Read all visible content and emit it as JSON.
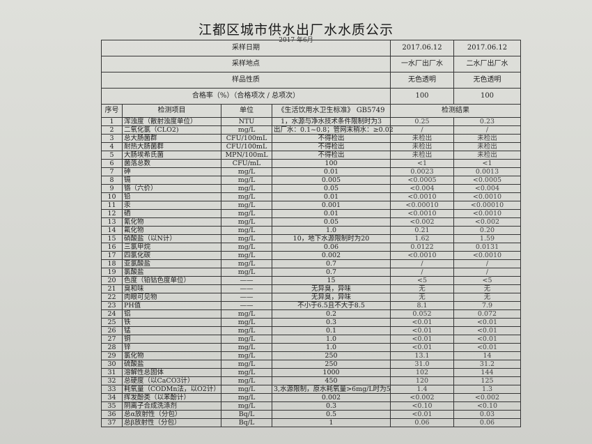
{
  "title": "江都区城市供水出厂水水质公示",
  "subtitle": "2017 年6月",
  "header": [
    {
      "label": "采样日期",
      "r1": "2017.06.12",
      "r2": "2017.06.12"
    },
    {
      "label": "采样地点",
      "r1": "一水厂出厂水",
      "r2": "二水厂出厂水"
    },
    {
      "label": "样品性质",
      "r1": "无色透明",
      "r2": "无色透明"
    },
    {
      "label": "合格率（%）（合格项次 / 总项次）",
      "r1": "100",
      "r2": "100"
    }
  ],
  "columns": {
    "no": "序号",
    "item": "检测项目",
    "unit": "单位",
    "standard": "《生活饮用水卫生标准》 GB5749",
    "result": "检测结果"
  },
  "rows": [
    {
      "no": "1",
      "item": "浑浊度（散射浊度单位）",
      "unit": "NTU",
      "std": "1，水源与净水技术条件限制时为3",
      "r1": "0.25",
      "r2": "0.23"
    },
    {
      "no": "2",
      "item": "二氧化氯（CLO2)",
      "unit": "mg/L",
      "std": "出厂水：0.1~0.8；管网末稍水：≥0.02",
      "r1": "/",
      "r2": "/"
    },
    {
      "no": "3",
      "item": "总大肠菌群",
      "unit": "CFU/100mL",
      "std": "不得检出",
      "r1": "未检出",
      "r2": "未检出"
    },
    {
      "no": "4",
      "item": "耐热大肠菌群",
      "unit": "CFU/100mL",
      "std": "不得检出",
      "r1": "未检出",
      "r2": "未检出"
    },
    {
      "no": "5",
      "item": "大肠埃希氏菌",
      "unit": "MPN/100mL",
      "std": "不得检出",
      "r1": "未检出",
      "r2": "未检出"
    },
    {
      "no": "6",
      "item": "菌落总数",
      "unit": "CFU/mL",
      "std": "100",
      "r1": "<1",
      "r2": "<1"
    },
    {
      "no": "7",
      "item": "砷",
      "unit": "mg/L",
      "std": "0.01",
      "r1": "0.0023",
      "r2": "0.0013"
    },
    {
      "no": "8",
      "item": "镉",
      "unit": "mg/L",
      "std": "0.005",
      "r1": "<0.0005",
      "r2": "<0.0005"
    },
    {
      "no": "9",
      "item": "铬（六价）",
      "unit": "mg/L",
      "std": "0.05",
      "r1": "<0.004",
      "r2": "<0.004"
    },
    {
      "no": "10",
      "item": "铅",
      "unit": "mg/L",
      "std": "0.01",
      "r1": "<0.0010",
      "r2": "<0.0010"
    },
    {
      "no": "11",
      "item": "汞",
      "unit": "mg/L",
      "std": "0.001",
      "r1": "<0.00010",
      "r2": "<0.00010"
    },
    {
      "no": "12",
      "item": "硒",
      "unit": "mg/L",
      "std": "0.01",
      "r1": "<0.0010",
      "r2": "<0.0010"
    },
    {
      "no": "13",
      "item": "氰化物",
      "unit": "mg/L",
      "std": "0.05",
      "r1": "<0.002",
      "r2": "<0.002"
    },
    {
      "no": "14",
      "item": "氟化物",
      "unit": "mg/L",
      "std": "1.0",
      "r1": "0.21",
      "r2": "0.20"
    },
    {
      "no": "15",
      "item": "硝酸盐（以N计）",
      "unit": "mg/L",
      "std": "10，地下水源限制时为20",
      "r1": "1.62",
      "r2": "1.59"
    },
    {
      "no": "16",
      "item": "三氯甲烷",
      "unit": "mg/L",
      "std": "0.06",
      "r1": "0.0122",
      "r2": "0.0131"
    },
    {
      "no": "17",
      "item": "四氯化碳",
      "unit": "mg/L",
      "std": "0.002",
      "r1": "<0.0010",
      "r2": "<0.0010"
    },
    {
      "no": "18",
      "item": "亚氯酸盐",
      "unit": "mg/L",
      "std": "0.7",
      "r1": "/",
      "r2": "/"
    },
    {
      "no": "19",
      "item": "氯酸盐",
      "unit": "mg/L",
      "std": "0.7",
      "r1": "/",
      "r2": "/"
    },
    {
      "no": "20",
      "item": "色度（铂钴色度单位）",
      "unit": "——",
      "std": "15",
      "r1": "<5",
      "r2": "<5"
    },
    {
      "no": "21",
      "item": "臭和味",
      "unit": "——",
      "std": "无异臭，异味",
      "r1": "无",
      "r2": "无"
    },
    {
      "no": "22",
      "item": "肉眼可见物",
      "unit": "——",
      "std": "无异臭，异味",
      "r1": "无",
      "r2": "无"
    },
    {
      "no": "23",
      "item": "PH值",
      "unit": "——",
      "std": "不小于6.5且不大于8.5",
      "r1": "8.1",
      "r2": "7.9"
    },
    {
      "no": "24",
      "item": "铝",
      "unit": "mg/L",
      "std": "0.2",
      "r1": "0.052",
      "r2": "0.072"
    },
    {
      "no": "25",
      "item": "铁",
      "unit": "mg/L",
      "std": "0.3",
      "r1": "<0.01",
      "r2": "<0.01"
    },
    {
      "no": "26",
      "item": "锰",
      "unit": "mg/L",
      "std": "0.1",
      "r1": "<0.01",
      "r2": "<0.01"
    },
    {
      "no": "27",
      "item": "铜",
      "unit": "mg/L",
      "std": "1.0",
      "r1": "<0.01",
      "r2": "<0.01"
    },
    {
      "no": "28",
      "item": "锌",
      "unit": "mg/L",
      "std": "1.0",
      "r1": "<0.01",
      "r2": "<0.01"
    },
    {
      "no": "29",
      "item": "氯化物",
      "unit": "mg/L",
      "std": "250",
      "r1": "13.1",
      "r2": "14"
    },
    {
      "no": "30",
      "item": "硫酸盐",
      "unit": "mg/L",
      "std": "250",
      "r1": "31.0",
      "r2": "31.2"
    },
    {
      "no": "31",
      "item": "溶解性总固体",
      "unit": "mg/L",
      "std": "1000",
      "r1": "102",
      "r2": "144"
    },
    {
      "no": "32",
      "item": "总硬度（以CaCO3计）",
      "unit": "mg/L",
      "std": "450",
      "r1": "120",
      "r2": "125"
    },
    {
      "no": "33",
      "item": "耗氧量（CODMn法，以O2计）",
      "unit": "mg/L",
      "std": "3,水源限制，原水耗氧量>6mg/L时为5",
      "r1": "1.4",
      "r2": "1.3"
    },
    {
      "no": "34",
      "item": "挥发酚类（以苯酚计）",
      "unit": "mg/L",
      "std": "0.002",
      "r1": "<0.002",
      "r2": "<0.002"
    },
    {
      "no": "35",
      "item": "阴离子合成洗涤剂",
      "unit": "mg/L",
      "std": "0.3",
      "r1": "<0.10",
      "r2": "<0.10"
    },
    {
      "no": "36",
      "item": "总α放射性（分包）",
      "unit": "Bq/L",
      "std": "0.5",
      "r1": "<0.01",
      "r2": "0.03"
    },
    {
      "no": "37",
      "item": "总β放射性（分包）",
      "unit": "Bq/L",
      "std": "1",
      "r1": "0.06",
      "r2": "0.06"
    }
  ]
}
